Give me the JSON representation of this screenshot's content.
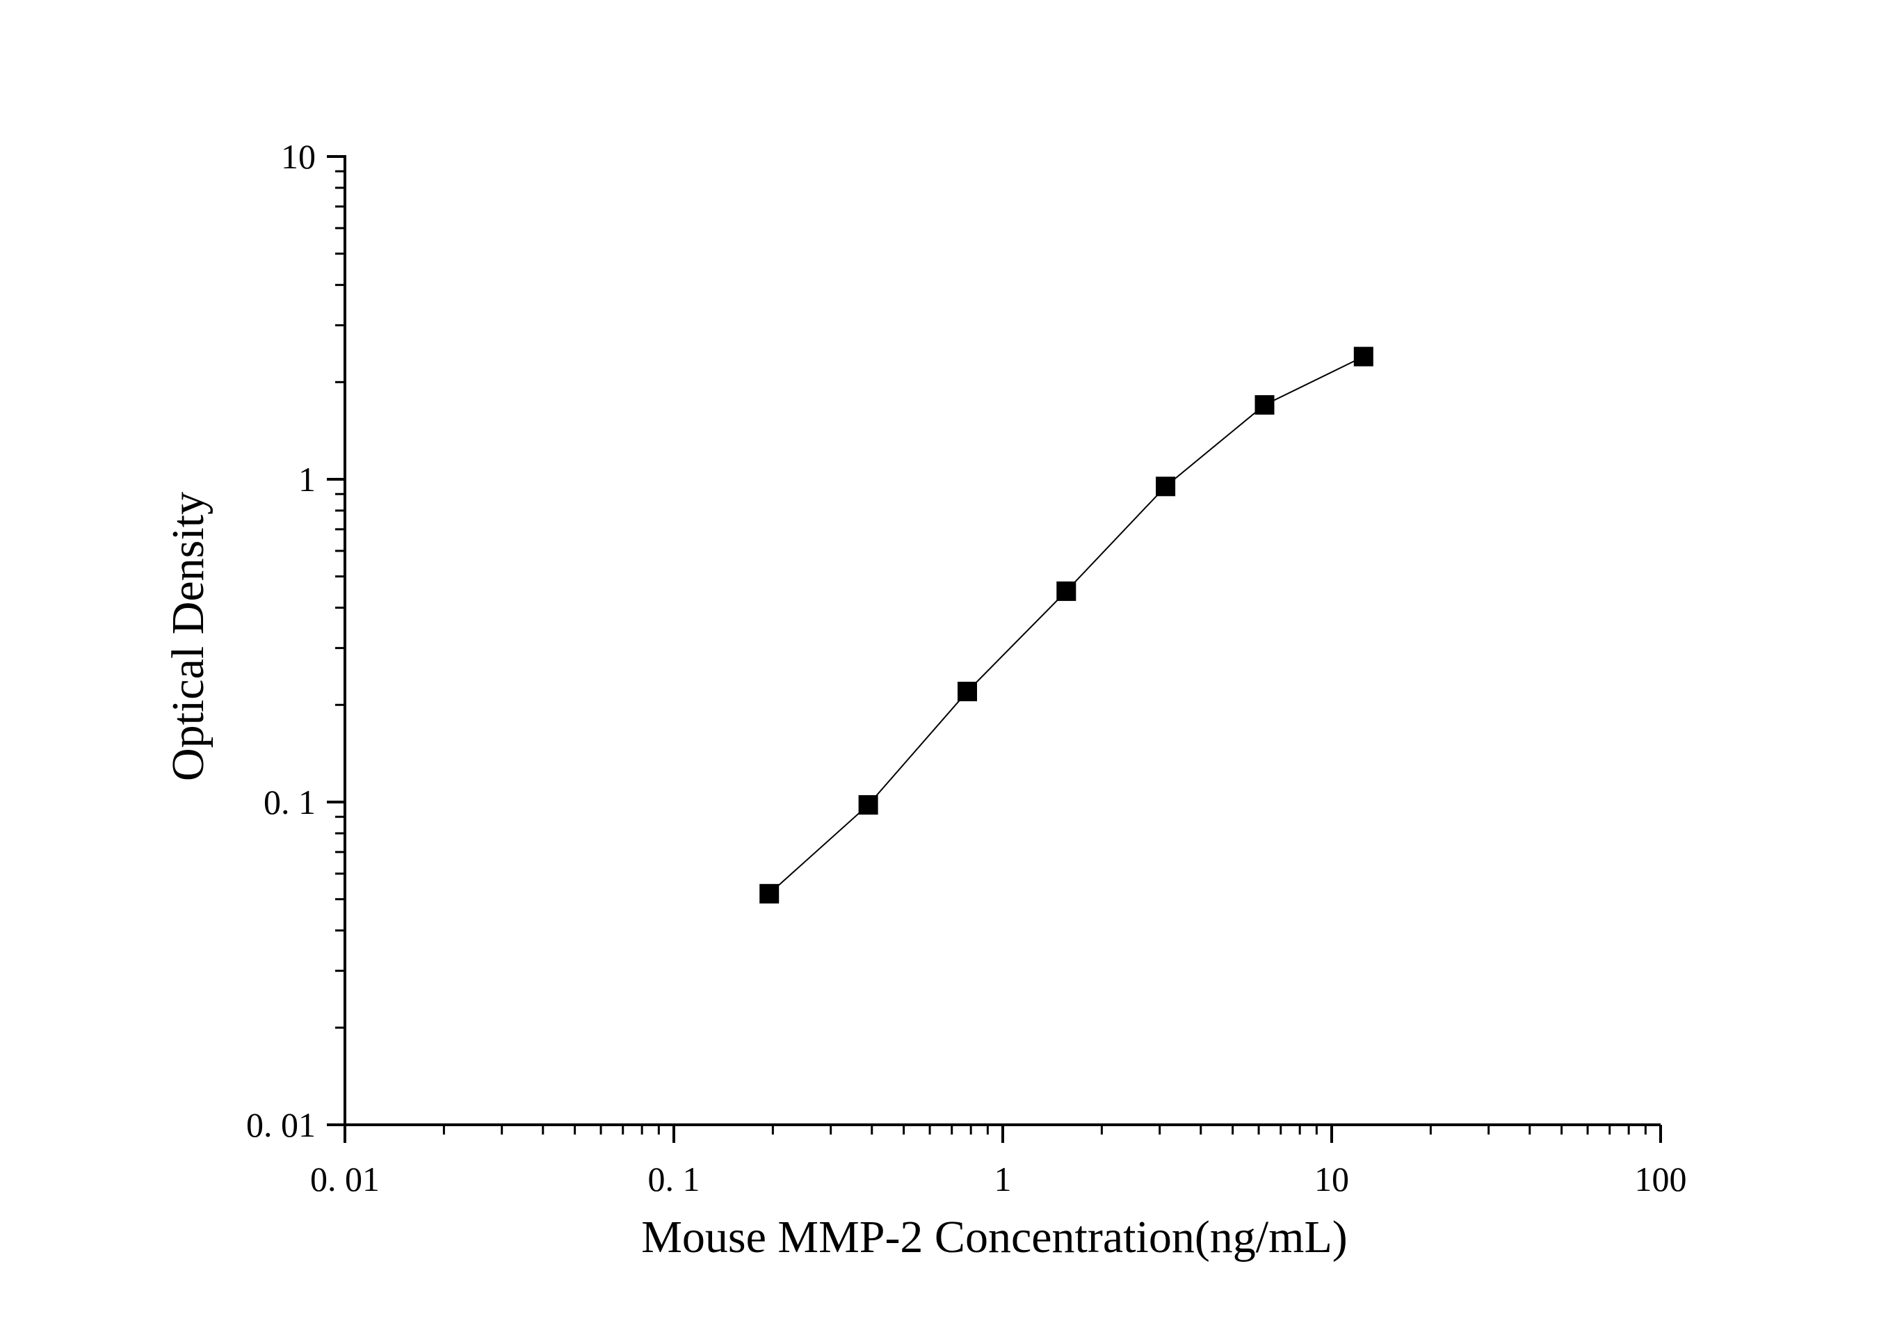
{
  "chart_data": {
    "type": "scatter",
    "xlabel": "Mouse MMP-2 Concentration(ng/mL)",
    "ylabel": "Optical Density",
    "x_scale": "log",
    "y_scale": "log",
    "xlim": [
      0.01,
      100
    ],
    "ylim": [
      0.01,
      10
    ],
    "x_tick_labels": [
      "0. 01",
      "0. 1",
      "1",
      "10",
      "100"
    ],
    "y_tick_labels": [
      "0. 01",
      "0. 1",
      "1",
      "10"
    ],
    "grid": false,
    "connected": true,
    "marker": "square",
    "series": [
      {
        "x": [
          0.195,
          0.39,
          0.78,
          1.56,
          3.125,
          6.25,
          12.5
        ],
        "y": [
          0.052,
          0.098,
          0.22,
          0.45,
          0.95,
          1.7,
          2.4
        ]
      }
    ],
    "colors": {
      "marker": "#000000",
      "line": "#000000",
      "axis": "#000000"
    }
  }
}
